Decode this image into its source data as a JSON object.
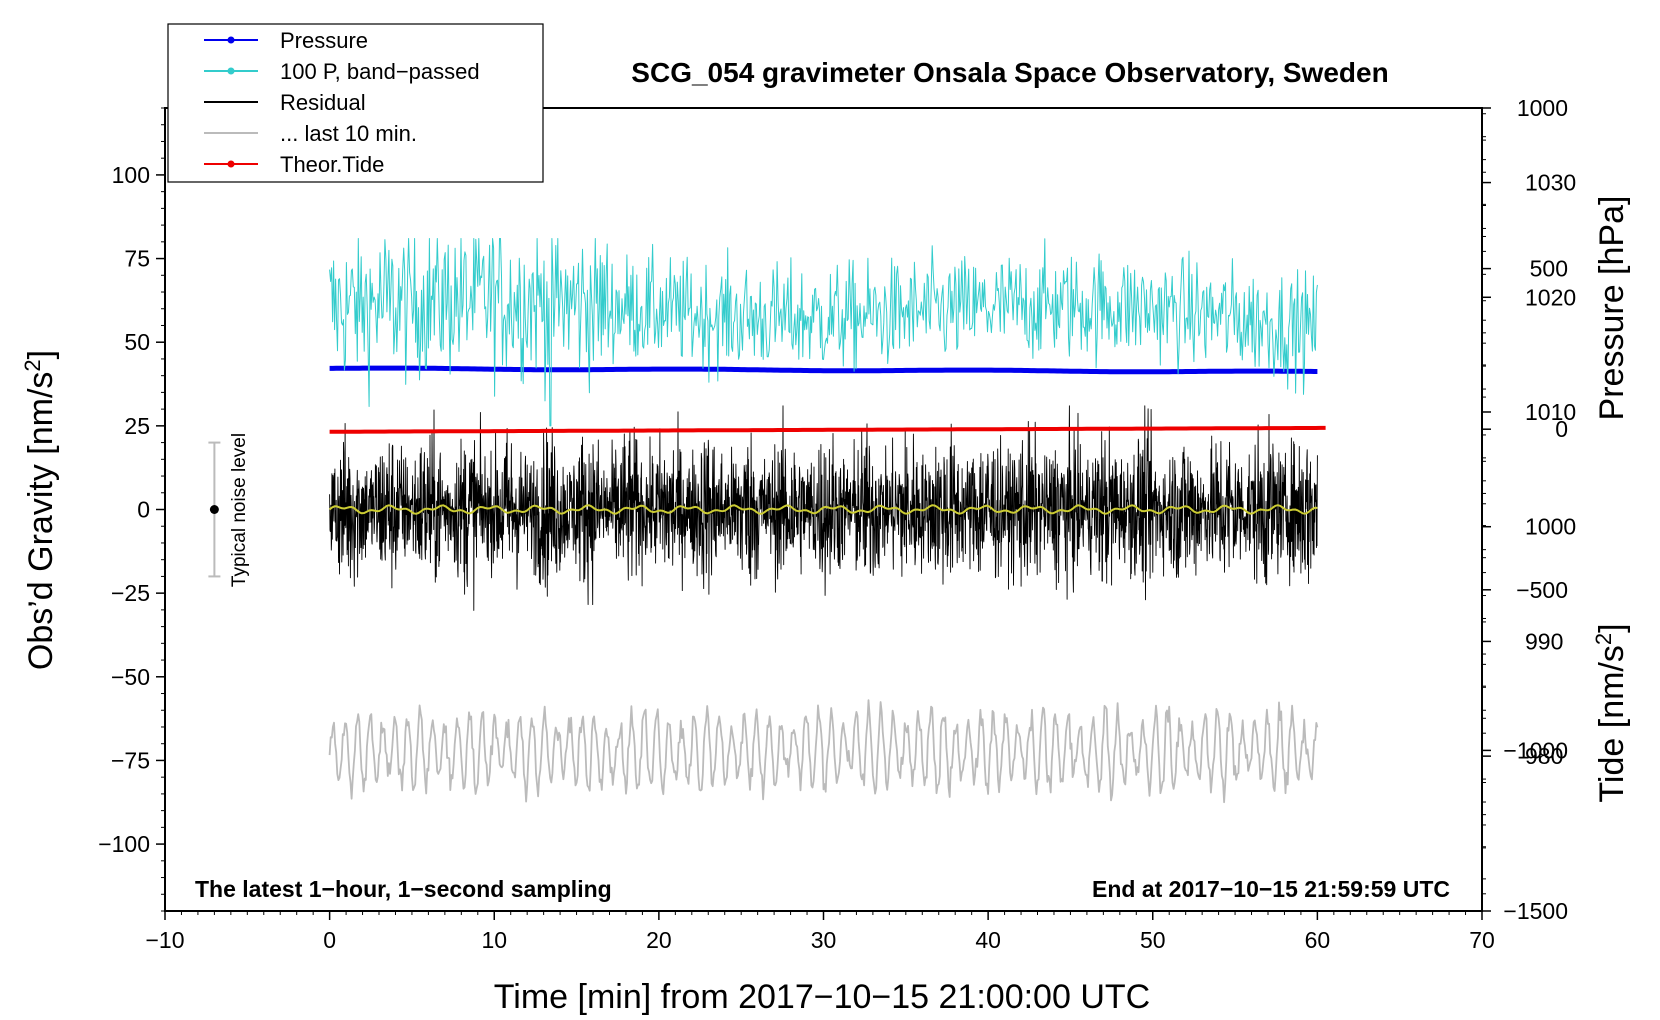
{
  "chart_data": {
    "type": "line",
    "title": "SCG_054 gravimeter Onsala Space Observatory, Sweden",
    "xlabel": "Time [min] from 2017−10−15 21:00:00 UTC",
    "ylabel_left_main": "Obs’d Gravity [nm/s",
    "ylabel_left_sup": "2",
    "ylabel_left_end": "]",
    "ylabel_right_pressure": "Pressure [hPa]",
    "ylabel_right_tide_main": "Tide [nm/s",
    "ylabel_right_tide_sup": "2",
    "ylabel_right_tide_end": "]",
    "annotation_left": "The latest 1−hour, 1−second sampling",
    "annotation_right": "End at 2017−10−15 21:59:59 UTC",
    "noise_label": "Typical noise level",
    "xlim": [
      -10,
      70
    ],
    "ylim_left": [
      -120,
      120
    ],
    "ylim_pressure": [
      966.5,
      1036.5
    ],
    "ylim_tide": [
      -1500,
      1000
    ],
    "x_ticks": [
      -10,
      0,
      10,
      20,
      30,
      40,
      50,
      60,
      70
    ],
    "x_tick_labels": [
      "−10",
      "0",
      "10",
      "20",
      "30",
      "40",
      "50",
      "60",
      "70"
    ],
    "y_left_ticks": [
      100,
      75,
      50,
      25,
      0,
      -25,
      -50,
      -75,
      -100
    ],
    "y_left_tick_labels": [
      "100",
      "75",
      "50",
      "25",
      "0",
      "−25",
      "−50",
      "−75",
      "−100"
    ],
    "pressure_ticks": [
      1030,
      1020,
      1010,
      1000,
      990,
      980
    ],
    "pressure_tick_labels": [
      "1030",
      "1020",
      "1010",
      "1000",
      "990",
      "980"
    ],
    "tide_ticks": [
      1000,
      500,
      0,
      -500,
      -1000,
      -1500
    ],
    "tide_tick_labels": [
      "1000",
      "500",
      "0",
      "−500",
      "−1000",
      "−1500"
    ],
    "legend": [
      {
        "label": "Pressure",
        "color": "#0000ee",
        "marker": true
      },
      {
        "label": "100 P, band−passed",
        "color": "#33cccc",
        "marker": true
      },
      {
        "label": "Residual",
        "color": "#000000",
        "marker": false
      },
      {
        "label": "... last 10 min.",
        "color": "#bbbbbb",
        "marker": false
      },
      {
        "label": "Theor.Tide",
        "color": "#ee0000",
        "marker": true
      }
    ],
    "series": [
      {
        "name": "Pressure",
        "axis": "pressure",
        "color": "#0000ee",
        "x_range": [
          0,
          60
        ],
        "start": 1013.8,
        "end": 1013.5
      },
      {
        "name": "100 P, band−passed",
        "axis": "left",
        "color": "#33cccc",
        "x_range": [
          0,
          60
        ],
        "center": 60,
        "amplitude": 9,
        "min": 25,
        "max": 81
      },
      {
        "name": "Residual",
        "axis": "left",
        "color": "#000000",
        "x_range": [
          0,
          60
        ],
        "center": 0,
        "amplitude": 10,
        "min": -35,
        "max": 31
      },
      {
        "name": "Residual smoothed",
        "axis": "left",
        "color": "#cccc33",
        "x_range": [
          0,
          60
        ],
        "center": 0
      },
      {
        "name": "... last 10 min.",
        "axis": "left",
        "color": "#bbbbbb",
        "x_range": [
          0,
          60
        ],
        "center": -72,
        "amplitude": 10,
        "min": -99,
        "max": -48
      },
      {
        "name": "Theor.Tide",
        "axis": "tide",
        "color": "#ee0000",
        "x_range": [
          0,
          60.5
        ],
        "start": -8,
        "end": 4
      }
    ],
    "noise_bar": {
      "x": -7,
      "center": 0,
      "low": -20,
      "high": 20
    }
  }
}
